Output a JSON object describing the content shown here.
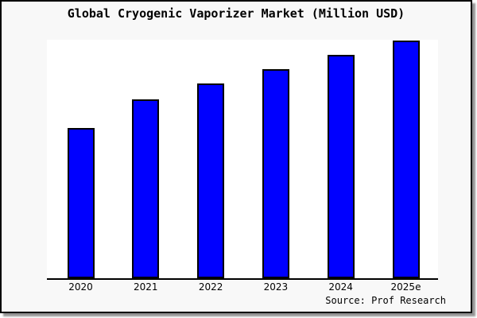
{
  "chart_data": {
    "type": "bar",
    "title": "Global Cryogenic Vaporizer Market (Million USD)",
    "categories": [
      "2020",
      "2021",
      "2022",
      "2023",
      "2024",
      "2025e"
    ],
    "values": [
      631,
      753,
      818,
      880,
      940,
      1000
    ],
    "values_note": "y-axis has no tick labels; values are relative units estimated from bar heights",
    "xlabel": "",
    "ylabel": "",
    "ylim": [
      0,
      1000
    ],
    "grid": false,
    "legend": "none",
    "source": "Source: Prof Research",
    "colors": {
      "bar_fill": "#0000ff",
      "bar_edge": "#000000",
      "panel_background": "#f8f8f8",
      "plot_background": "#ffffff",
      "frame_border": "#000000",
      "text": "#000000"
    }
  }
}
